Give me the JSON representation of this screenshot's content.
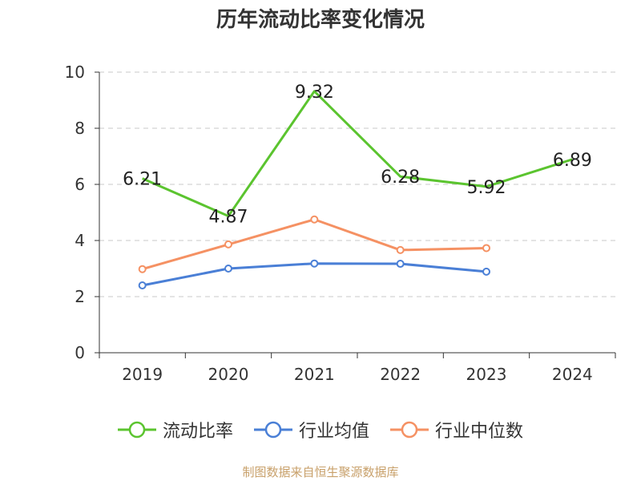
{
  "title": "历年流动比率变化情况",
  "source": "制图数据来自恒生聚源数据库",
  "chart_data": {
    "type": "line",
    "categories": [
      "2019",
      "2020",
      "2021",
      "2022",
      "2023",
      "2024"
    ],
    "ylim": [
      0,
      10
    ],
    "yticks": [
      0,
      2,
      4,
      6,
      8,
      10
    ],
    "grid": true,
    "legend_position": "bottom",
    "series": [
      {
        "name": "流动比率",
        "color": "#5bc42f",
        "values": [
          6.21,
          4.87,
          9.32,
          6.28,
          5.92,
          6.89
        ],
        "show_labels": true,
        "markers": false
      },
      {
        "name": "行业均值",
        "color": "#4a7fd6",
        "values": [
          2.4,
          3.0,
          3.18,
          3.17,
          2.89,
          null
        ],
        "show_labels": false,
        "markers": true
      },
      {
        "name": "行业中位数",
        "color": "#f59163",
        "values": [
          2.98,
          3.86,
          4.75,
          3.66,
          3.73,
          null
        ],
        "show_labels": false,
        "markers": true
      }
    ]
  }
}
